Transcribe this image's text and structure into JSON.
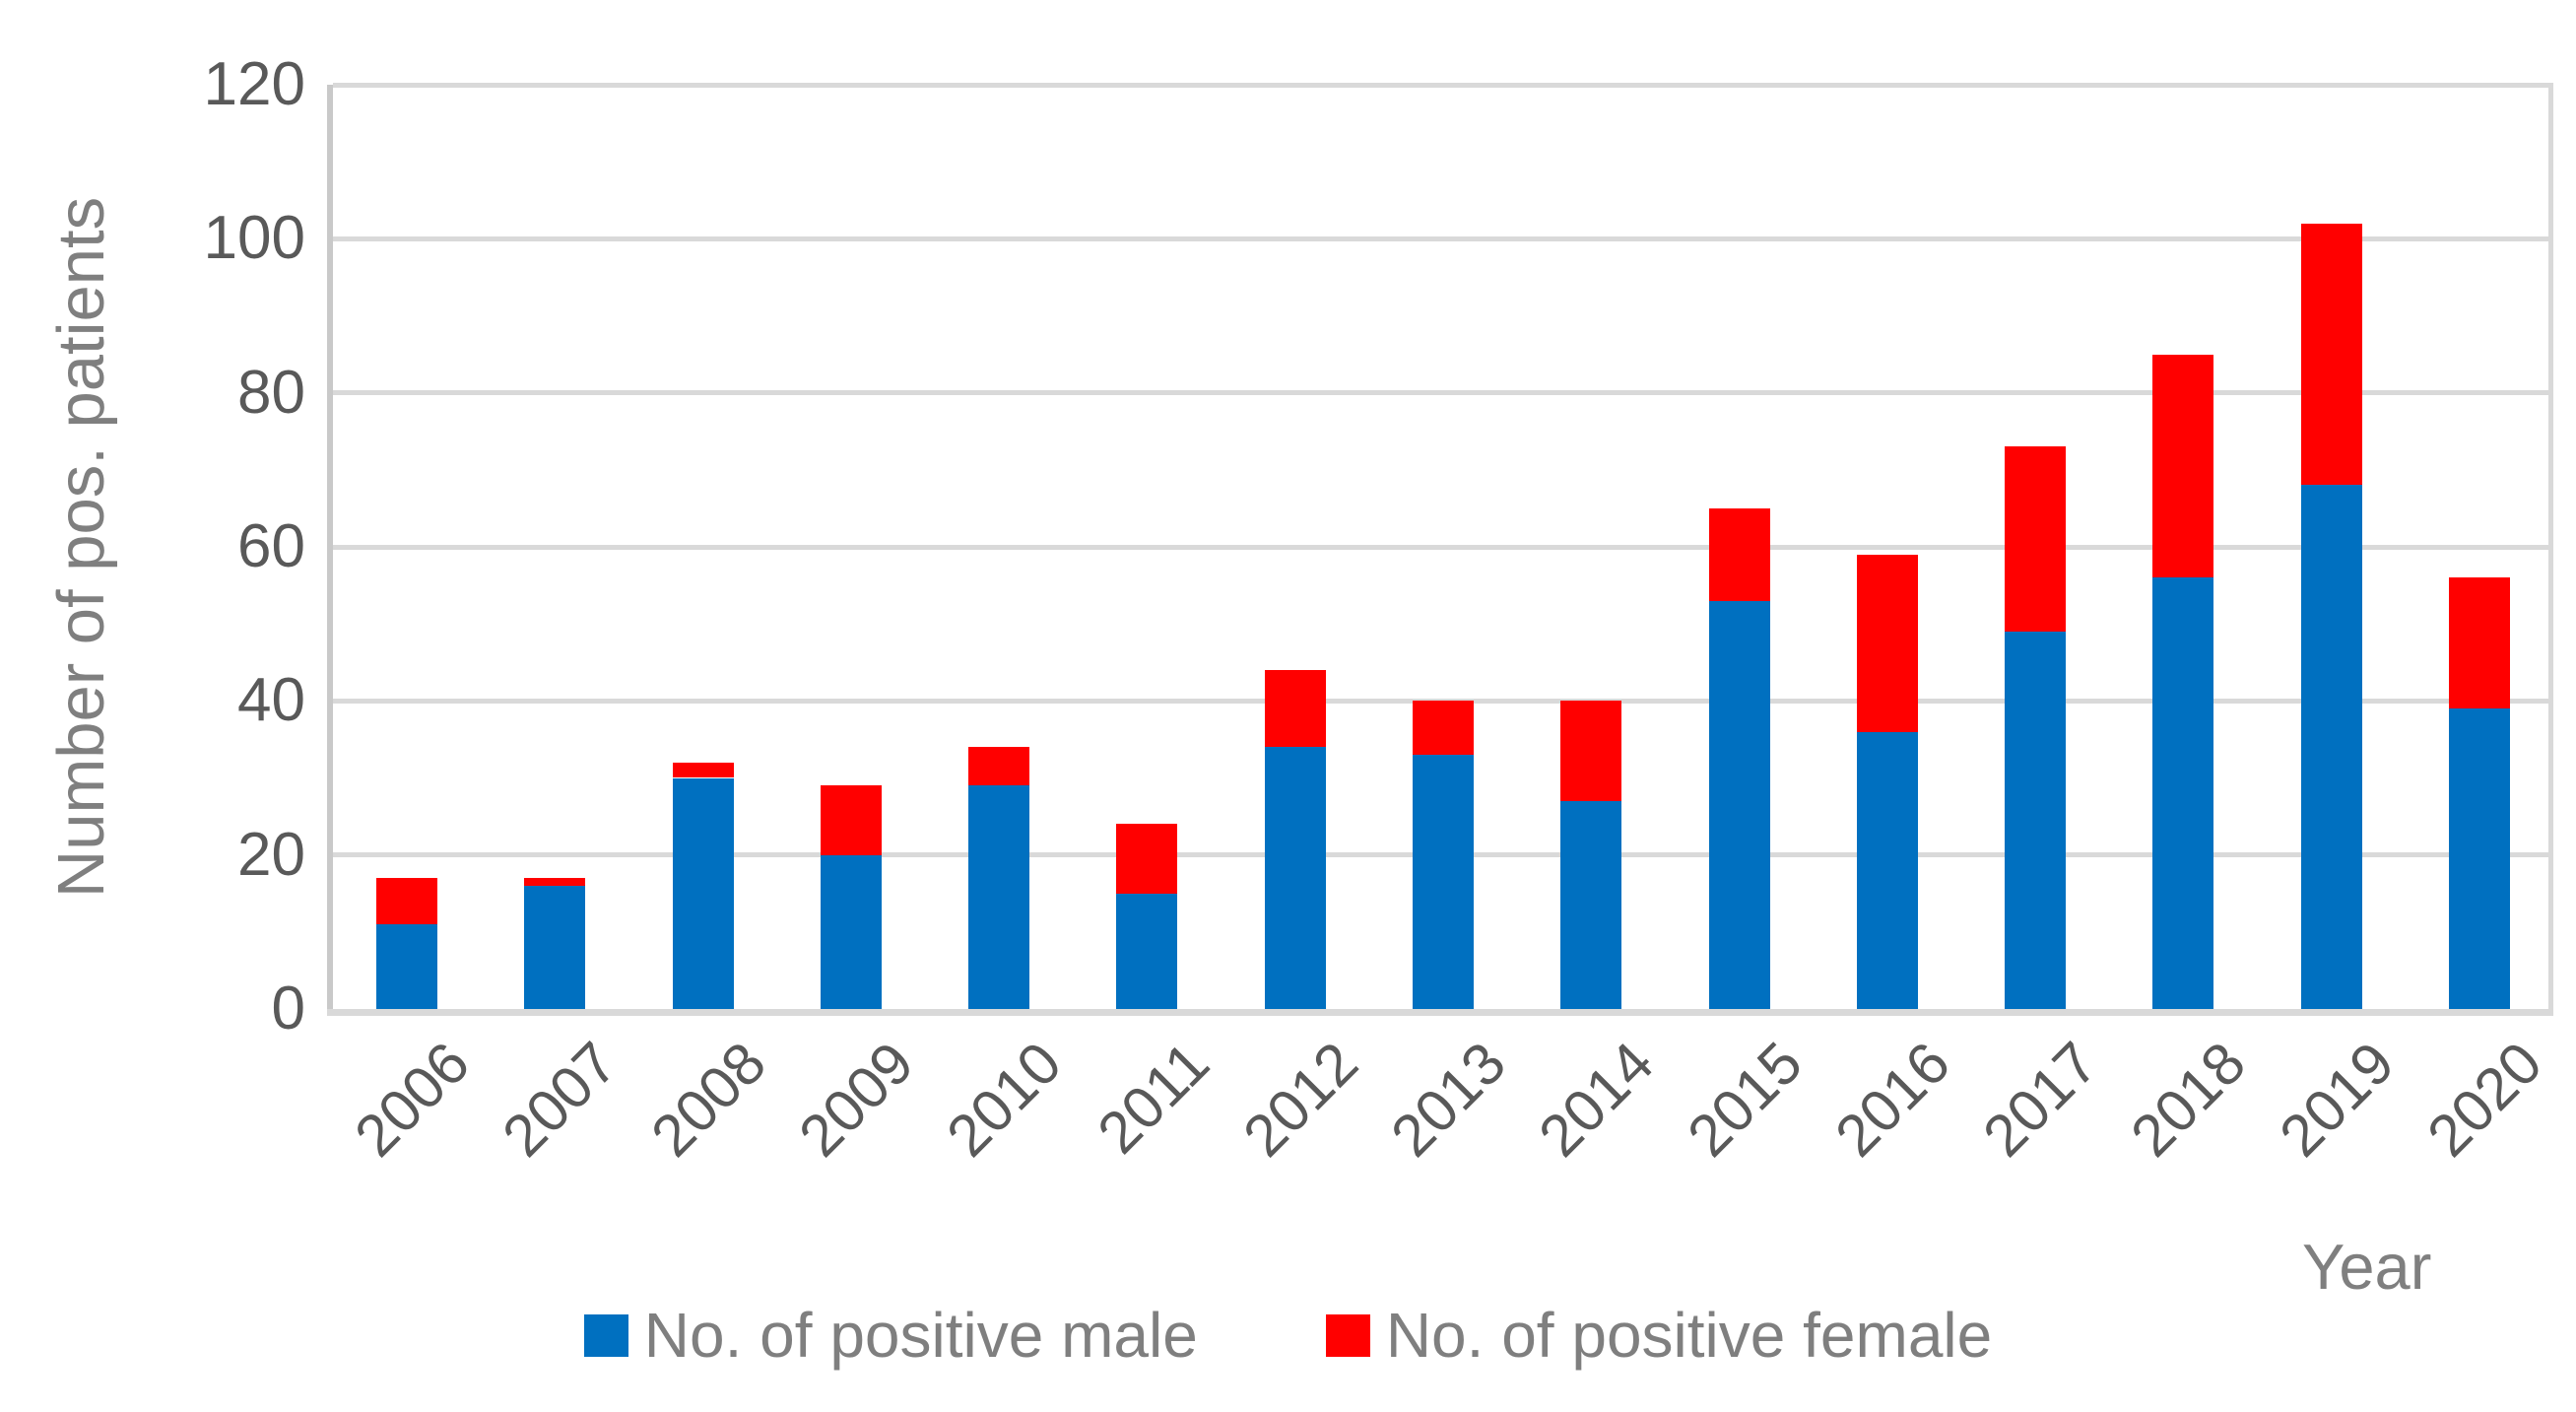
{
  "chart_data": {
    "type": "bar",
    "stacked": true,
    "title": "",
    "xlabel": "Year",
    "ylabel": "Number of pos. patients",
    "categories": [
      "2006",
      "2007",
      "2008",
      "2009",
      "2010",
      "2011",
      "2012",
      "2013",
      "2014",
      "2015",
      "2016",
      "2017",
      "2018",
      "2019",
      "2020"
    ],
    "series": [
      {
        "name": "No. of positive male",
        "color": "#0070C0",
        "values": [
          11,
          16,
          30,
          20,
          29,
          15,
          34,
          33,
          27,
          53,
          36,
          49,
          56,
          68,
          39
        ]
      },
      {
        "name": "No. of positive female",
        "color": "#FF0000",
        "values": [
          6,
          1,
          2,
          9,
          5,
          9,
          10,
          7,
          13,
          12,
          23,
          24,
          29,
          34,
          17
        ]
      }
    ],
    "ylim": [
      0,
      120
    ],
    "yticks": [
      0,
      20,
      40,
      60,
      80,
      100,
      120
    ],
    "grid": true,
    "legend_position": "bottom",
    "x_tick_rotation_deg": -45
  },
  "styles": {
    "bar_male_color": "#0070C0",
    "bar_female_color": "#FF0000",
    "gridline_color": "#D9D9D9",
    "axis_line_color": "#C9C9C9",
    "tick_label_color": "#595959",
    "axis_title_color": "#7F7F7F",
    "background_color": "#FFFFFF"
  }
}
